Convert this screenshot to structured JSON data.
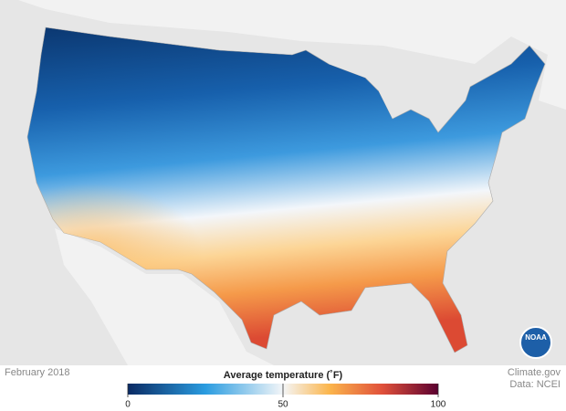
{
  "date": "February 2018",
  "legend": {
    "title": "Average temperature (˚F)",
    "range": [
      0,
      100
    ],
    "ticks": [
      0,
      50,
      100
    ]
  },
  "credit": {
    "source": "Climate.gov",
    "data": "Data: NCEI"
  },
  "logo": "NOAA"
}
